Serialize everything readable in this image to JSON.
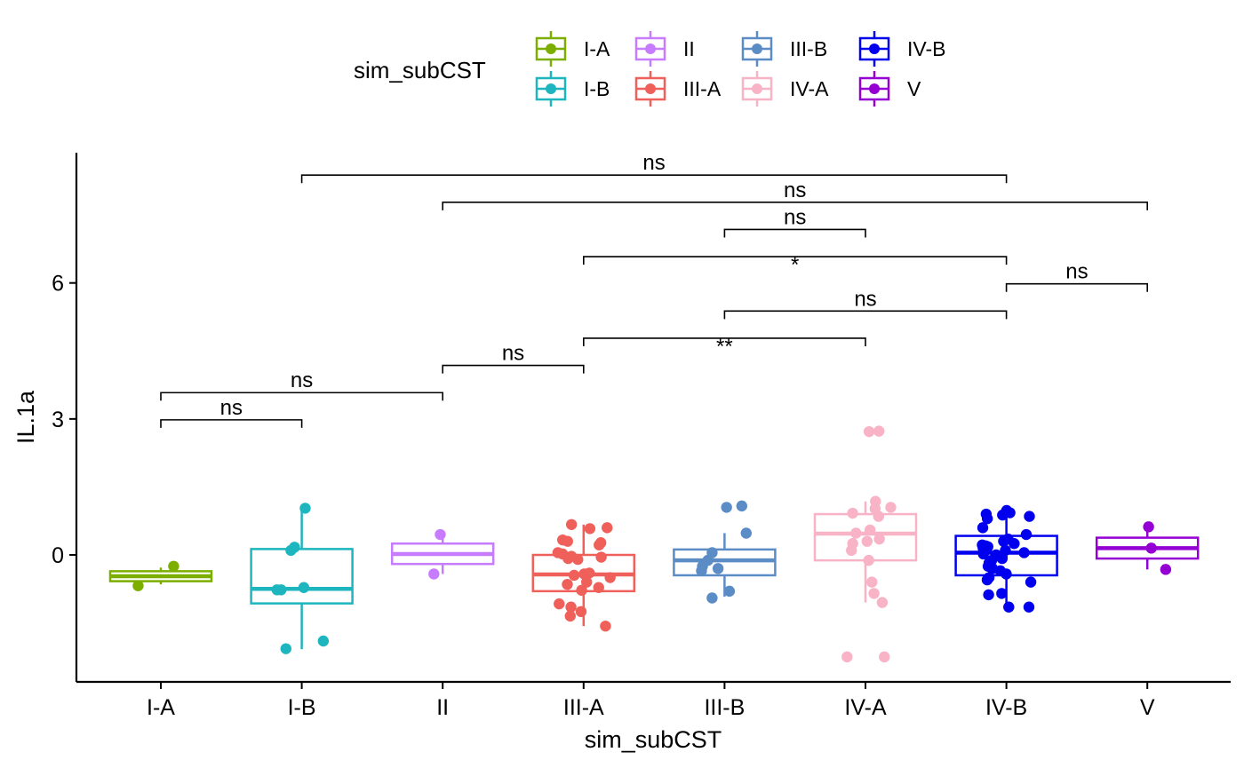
{
  "chart_data": {
    "type": "boxplot",
    "title": "",
    "xlabel": "sim_subCST",
    "ylabel": "IL.1a",
    "ylim": [
      -2.8,
      8.8
    ],
    "yticks": [
      0,
      3,
      6
    ],
    "categories": [
      "I-A",
      "I-B",
      "II",
      "III-A",
      "III-B",
      "IV-A",
      "IV-B",
      "V"
    ],
    "colors": [
      "#7CAE00",
      "#1EB6BE",
      "#C77CFF",
      "#F0605A",
      "#5B8CC6",
      "#F8B4C6",
      "#0000EE",
      "#9400D3"
    ],
    "legend": {
      "title": "sim_subCST",
      "position": "top",
      "entries": [
        "I-A",
        "I-B",
        "II",
        "III-A",
        "III-B",
        "IV-A",
        "IV-B",
        "V"
      ]
    },
    "grid": false,
    "boxes": [
      {
        "category": "I-A",
        "q1": -0.58,
        "median": -0.47,
        "q3": -0.36,
        "whisker_low": -0.65,
        "whisker_high": -0.28
      },
      {
        "category": "I-B",
        "q1": -1.07,
        "median": -0.75,
        "q3": 0.13,
        "whisker_low": -2.08,
        "whisker_high": 1.03
      },
      {
        "category": "II",
        "q1": -0.2,
        "median": 0.02,
        "q3": 0.25,
        "whisker_low": -0.42,
        "whisker_high": 0.45
      },
      {
        "category": "III-A",
        "q1": -0.8,
        "median": -0.43,
        "q3": 0.0,
        "whisker_low": -1.57,
        "whisker_high": 0.67
      },
      {
        "category": "III-B",
        "q1": -0.45,
        "median": -0.12,
        "q3": 0.12,
        "whisker_low": -0.92,
        "whisker_high": 0.48
      },
      {
        "category": "IV-A",
        "q1": -0.12,
        "median": 0.47,
        "q3": 0.9,
        "whisker_low": -1.05,
        "whisker_high": 1.18
      },
      {
        "category": "IV-B",
        "q1": -0.45,
        "median": 0.05,
        "q3": 0.42,
        "whisker_low": -1.15,
        "whisker_high": 0.98
      },
      {
        "category": "V",
        "q1": -0.08,
        "median": 0.15,
        "q3": 0.38,
        "whisker_low": -0.32,
        "whisker_high": 0.6
      }
    ],
    "points": [
      {
        "category": "I-A",
        "values": [
          -0.25,
          -0.68
        ]
      },
      {
        "category": "I-B",
        "values": [
          1.03,
          0.17,
          0.1,
          -0.72,
          -0.77,
          -0.77,
          -1.9,
          -2.07
        ]
      },
      {
        "category": "II",
        "values": [
          0.45,
          -0.42
        ]
      },
      {
        "category": "III-A",
        "values": [
          0.67,
          0.6,
          0.58,
          0.33,
          0.3,
          0.27,
          0.22,
          0.05,
          0.02,
          -0.03,
          -0.05,
          -0.08,
          -0.1,
          -0.4,
          -0.42,
          -0.45,
          -0.5,
          -0.6,
          -0.65,
          -0.72,
          -0.78,
          -1.08,
          -1.15,
          -1.25,
          -1.35,
          -1.57
        ]
      },
      {
        "category": "III-B",
        "values": [
          1.08,
          1.05,
          0.48,
          0.05,
          -0.12,
          -0.25,
          -0.3,
          -0.35,
          -0.8,
          -0.95
        ]
      },
      {
        "category": "IV-A",
        "values": [
          2.73,
          2.72,
          1.18,
          1.05,
          1.02,
          0.92,
          0.85,
          0.55,
          0.48,
          0.35,
          0.3,
          0.25,
          0.1,
          -0.12,
          -0.6,
          -0.85,
          -1.05,
          -2.25,
          -2.25
        ]
      },
      {
        "category": "IV-B",
        "values": [
          0.98,
          0.93,
          0.9,
          0.88,
          0.85,
          0.8,
          0.6,
          0.45,
          0.35,
          0.3,
          0.25,
          0.22,
          0.2,
          0.18,
          0.15,
          0.1,
          0.05,
          0.02,
          0.0,
          -0.05,
          -0.08,
          -0.12,
          -0.18,
          -0.25,
          -0.3,
          -0.35,
          -0.42,
          -0.5,
          -0.55,
          -0.6,
          -0.85,
          -0.88,
          -1.15,
          -1.15
        ]
      },
      {
        "category": "V",
        "values": [
          0.62,
          0.15,
          -0.32
        ]
      }
    ],
    "comparisons": [
      {
        "from": "I-A",
        "to": "I-B",
        "y": 2.98,
        "label": "ns"
      },
      {
        "from": "I-A",
        "to": "II",
        "y": 3.58,
        "label": "ns"
      },
      {
        "from": "II",
        "to": "III-A",
        "y": 4.18,
        "label": "ns"
      },
      {
        "from": "III-A",
        "to": "IV-A",
        "y": 4.78,
        "label": "**"
      },
      {
        "from": "III-B",
        "to": "IV-B",
        "y": 5.38,
        "label": "ns"
      },
      {
        "from": "IV-B",
        "to": "V",
        "y": 5.98,
        "label": "ns"
      },
      {
        "from": "III-A",
        "to": "IV-B",
        "y": 6.58,
        "label": "*"
      },
      {
        "from": "III-B",
        "to": "IV-A",
        "y": 7.18,
        "label": "ns"
      },
      {
        "from": "II",
        "to": "V",
        "y": 7.78,
        "label": "ns"
      },
      {
        "from": "I-B",
        "to": "IV-B",
        "y": 8.38,
        "label": "ns"
      }
    ]
  }
}
